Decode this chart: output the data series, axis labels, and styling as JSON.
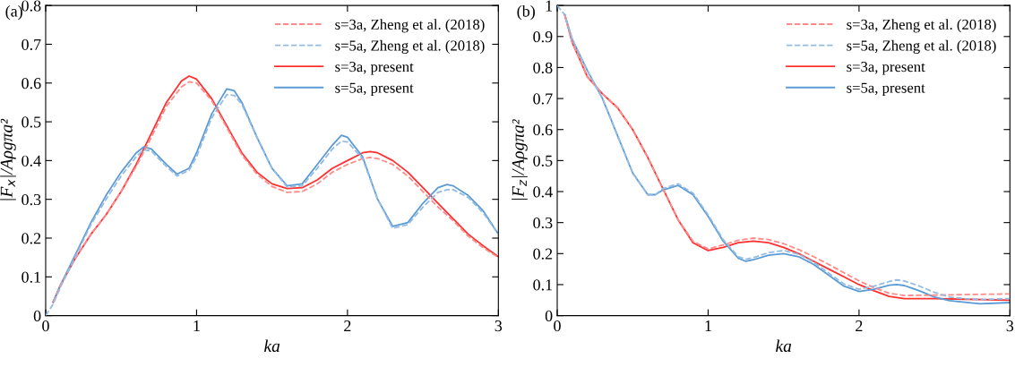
{
  "chart_data": [
    {
      "type": "line",
      "title": "(a)",
      "xlabel": "ka",
      "ylabel": "|F$_{x}$|/Aρgπa²",
      "xlim": [
        0,
        3
      ],
      "xticks": [
        0,
        1,
        2,
        3
      ],
      "ylim": [
        0,
        0.8
      ],
      "yticks": [
        0,
        0.1,
        0.2,
        0.3,
        0.4,
        0.5,
        0.6,
        0.7,
        0.8
      ],
      "legend": "top right",
      "grid": false,
      "series": [
        {
          "name": "s=3a, Zheng et al. (2018)",
          "color": "#ff8a8a",
          "line_style": "dashed",
          "x": [
            0.05,
            0.1,
            0.2,
            0.3,
            0.4,
            0.5,
            0.6,
            0.7,
            0.8,
            0.9,
            0.95,
            1.0,
            1.1,
            1.2,
            1.3,
            1.4,
            1.5,
            1.6,
            1.7,
            1.8,
            1.9,
            2.0,
            2.1,
            2.15,
            2.2,
            2.3,
            2.4,
            2.5,
            2.6,
            2.7,
            2.8,
            2.9,
            3.0
          ],
          "values": [
            0.035,
            0.08,
            0.15,
            0.21,
            0.26,
            0.32,
            0.385,
            0.46,
            0.54,
            0.59,
            0.603,
            0.6,
            0.555,
            0.485,
            0.415,
            0.365,
            0.333,
            0.318,
            0.32,
            0.34,
            0.37,
            0.39,
            0.405,
            0.408,
            0.405,
            0.39,
            0.36,
            0.32,
            0.28,
            0.245,
            0.205,
            0.175,
            0.15
          ]
        },
        {
          "name": "s=5a, Zheng et al. (2018)",
          "color": "#94bce3",
          "line_style": "dashed",
          "x": [
            0,
            0.05,
            0.1,
            0.2,
            0.3,
            0.4,
            0.5,
            0.6,
            0.65,
            0.7,
            0.8,
            0.87,
            0.95,
            1.0,
            1.1,
            1.2,
            1.25,
            1.3,
            1.4,
            1.5,
            1.6,
            1.7,
            1.8,
            1.9,
            1.96,
            2.0,
            2.1,
            2.2,
            2.3,
            2.4,
            2.5,
            2.6,
            2.66,
            2.7,
            2.8,
            2.9,
            3.0
          ],
          "values": [
            0,
            0.03,
            0.075,
            0.155,
            0.235,
            0.3,
            0.36,
            0.41,
            0.428,
            0.425,
            0.385,
            0.36,
            0.375,
            0.41,
            0.51,
            0.57,
            0.568,
            0.545,
            0.46,
            0.38,
            0.332,
            0.335,
            0.38,
            0.43,
            0.45,
            0.448,
            0.405,
            0.3,
            0.225,
            0.235,
            0.28,
            0.318,
            0.325,
            0.325,
            0.305,
            0.265,
            0.21
          ]
        },
        {
          "name": "s=3a, present",
          "color": "#ff3030",
          "line_style": "solid",
          "x": [
            0.05,
            0.1,
            0.2,
            0.3,
            0.4,
            0.5,
            0.6,
            0.7,
            0.8,
            0.9,
            0.95,
            1.0,
            1.1,
            1.2,
            1.3,
            1.4,
            1.5,
            1.6,
            1.7,
            1.8,
            1.9,
            2.0,
            2.1,
            2.15,
            2.2,
            2.3,
            2.4,
            2.5,
            2.6,
            2.7,
            2.8,
            2.9,
            3.0
          ],
          "values": [
            0.035,
            0.08,
            0.15,
            0.21,
            0.26,
            0.32,
            0.39,
            0.47,
            0.55,
            0.605,
            0.618,
            0.61,
            0.56,
            0.49,
            0.42,
            0.37,
            0.34,
            0.328,
            0.33,
            0.35,
            0.38,
            0.4,
            0.42,
            0.423,
            0.42,
            0.4,
            0.37,
            0.33,
            0.29,
            0.25,
            0.21,
            0.18,
            0.152
          ]
        },
        {
          "name": "s=5a, present",
          "color": "#5b9bd5",
          "line_style": "solid",
          "x": [
            0.05,
            0.1,
            0.2,
            0.3,
            0.4,
            0.5,
            0.6,
            0.65,
            0.7,
            0.8,
            0.87,
            0.95,
            1.0,
            1.1,
            1.2,
            1.25,
            1.3,
            1.4,
            1.5,
            1.6,
            1.7,
            1.8,
            1.9,
            1.96,
            2.0,
            2.1,
            2.2,
            2.3,
            2.4,
            2.5,
            2.6,
            2.66,
            2.7,
            2.8,
            2.9,
            3.0
          ],
          "values": [
            0.035,
            0.08,
            0.16,
            0.24,
            0.31,
            0.37,
            0.42,
            0.435,
            0.43,
            0.39,
            0.365,
            0.38,
            0.42,
            0.52,
            0.585,
            0.58,
            0.55,
            0.46,
            0.38,
            0.335,
            0.34,
            0.39,
            0.44,
            0.465,
            0.46,
            0.41,
            0.3,
            0.23,
            0.24,
            0.29,
            0.33,
            0.338,
            0.335,
            0.31,
            0.27,
            0.21
          ]
        }
      ]
    },
    {
      "type": "line",
      "title": "(b)",
      "xlabel": "ka",
      "ylabel": "|F$_{z}$|/Aρgπa²",
      "xlim": [
        0,
        3
      ],
      "xticks": [
        0,
        1,
        2,
        3
      ],
      "ylim": [
        0,
        1
      ],
      "yticks": [
        0,
        0.1,
        0.2,
        0.3,
        0.4,
        0.5,
        0.6,
        0.7,
        0.8,
        0.9,
        1
      ],
      "legend": "top right",
      "grid": false,
      "series": [
        {
          "name": "s=3a, Zheng et al. (2018)",
          "color": "#ff8a8a",
          "line_style": "dashed",
          "x": [
            0.05,
            0.1,
            0.2,
            0.3,
            0.4,
            0.5,
            0.6,
            0.7,
            0.8,
            0.9,
            1.0,
            1.1,
            1.2,
            1.3,
            1.4,
            1.5,
            1.6,
            1.7,
            1.8,
            1.9,
            2.0,
            2.1,
            2.2,
            2.3,
            2.5,
            2.7,
            3.0
          ],
          "values": [
            0.97,
            0.88,
            0.77,
            0.715,
            0.67,
            0.6,
            0.51,
            0.41,
            0.31,
            0.24,
            0.215,
            0.228,
            0.243,
            0.25,
            0.245,
            0.232,
            0.213,
            0.19,
            0.165,
            0.138,
            0.112,
            0.09,
            0.072,
            0.065,
            0.066,
            0.068,
            0.07
          ]
        },
        {
          "name": "s=5a, Zheng et al. (2018)",
          "color": "#94bce3",
          "line_style": "dashed",
          "x": [
            0,
            0.05,
            0.1,
            0.2,
            0.3,
            0.4,
            0.5,
            0.6,
            0.65,
            0.7,
            0.8,
            0.9,
            1.0,
            1.1,
            1.2,
            1.25,
            1.3,
            1.4,
            1.5,
            1.6,
            1.7,
            1.8,
            1.9,
            2.0,
            2.1,
            2.2,
            2.25,
            2.3,
            2.4,
            2.5,
            2.6,
            2.7,
            2.8,
            3.0
          ],
          "values": [
            1.0,
            0.97,
            0.89,
            0.79,
            0.7,
            0.58,
            0.46,
            0.39,
            0.39,
            0.41,
            0.425,
            0.395,
            0.325,
            0.245,
            0.19,
            0.182,
            0.187,
            0.203,
            0.21,
            0.198,
            0.172,
            0.137,
            0.102,
            0.085,
            0.095,
            0.11,
            0.115,
            0.112,
            0.095,
            0.075,
            0.06,
            0.055,
            0.052,
            0.055
          ]
        },
        {
          "name": "s=3a, present",
          "color": "#ff3030",
          "line_style": "solid",
          "x": [
            0.05,
            0.1,
            0.2,
            0.3,
            0.4,
            0.5,
            0.6,
            0.7,
            0.8,
            0.9,
            1.0,
            1.1,
            1.2,
            1.3,
            1.4,
            1.5,
            1.6,
            1.7,
            1.8,
            1.9,
            2.0,
            2.1,
            2.2,
            2.3,
            2.5,
            2.7,
            3.0
          ],
          "values": [
            0.97,
            0.88,
            0.77,
            0.715,
            0.67,
            0.6,
            0.51,
            0.41,
            0.31,
            0.235,
            0.21,
            0.22,
            0.235,
            0.24,
            0.235,
            0.22,
            0.2,
            0.175,
            0.15,
            0.125,
            0.1,
            0.08,
            0.062,
            0.055,
            0.055,
            0.053,
            0.05
          ]
        },
        {
          "name": "s=5a, present",
          "color": "#5b9bd5",
          "line_style": "solid",
          "x": [
            0.05,
            0.1,
            0.2,
            0.3,
            0.4,
            0.5,
            0.6,
            0.65,
            0.7,
            0.8,
            0.9,
            1.0,
            1.1,
            1.2,
            1.25,
            1.3,
            1.4,
            1.5,
            1.6,
            1.7,
            1.8,
            1.9,
            2.0,
            2.1,
            2.2,
            2.25,
            2.3,
            2.4,
            2.5,
            2.6,
            2.8,
            3.0
          ],
          "values": [
            0.97,
            0.89,
            0.79,
            0.7,
            0.58,
            0.46,
            0.39,
            0.39,
            0.405,
            0.42,
            0.39,
            0.32,
            0.24,
            0.185,
            0.175,
            0.18,
            0.195,
            0.2,
            0.19,
            0.165,
            0.13,
            0.095,
            0.078,
            0.085,
            0.098,
            0.1,
            0.097,
            0.08,
            0.06,
            0.048,
            0.038,
            0.042
          ]
        }
      ]
    }
  ]
}
